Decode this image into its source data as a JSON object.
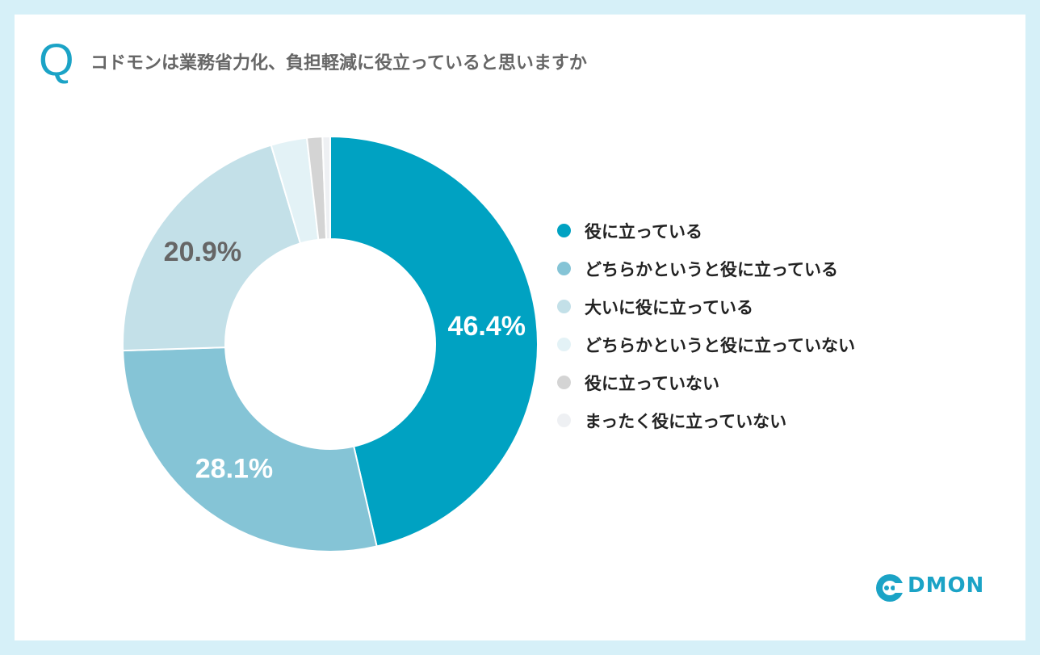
{
  "header": {
    "q_mark": "Q",
    "title": "コドモンは業務省力化、負担軽減に役立っていると思いますか"
  },
  "chart_data": {
    "type": "pie",
    "donut": true,
    "categories": [
      "役に立っている",
      "どちらかというと役に立っている",
      "大いに役に立っている",
      "どちらかというと役に立っていない",
      "役に立っていない",
      "まったく役に立っていない"
    ],
    "values": [
      46.4,
      28.1,
      20.9,
      2.8,
      1.2,
      0.6
    ],
    "data_labels": [
      "46.4%",
      "28.1%",
      "20.9%",
      "",
      "",
      ""
    ],
    "colors": [
      "#00a2c2",
      "#85c4d6",
      "#c3e0e8",
      "#e3f2f6",
      "#d4d4d4",
      "#eef0f3"
    ],
    "label_colors": [
      "#ffffff",
      "#ffffff",
      "#666666",
      "",
      "",
      ""
    ],
    "legend_position": "right"
  },
  "logo": {
    "text": "DMON"
  }
}
